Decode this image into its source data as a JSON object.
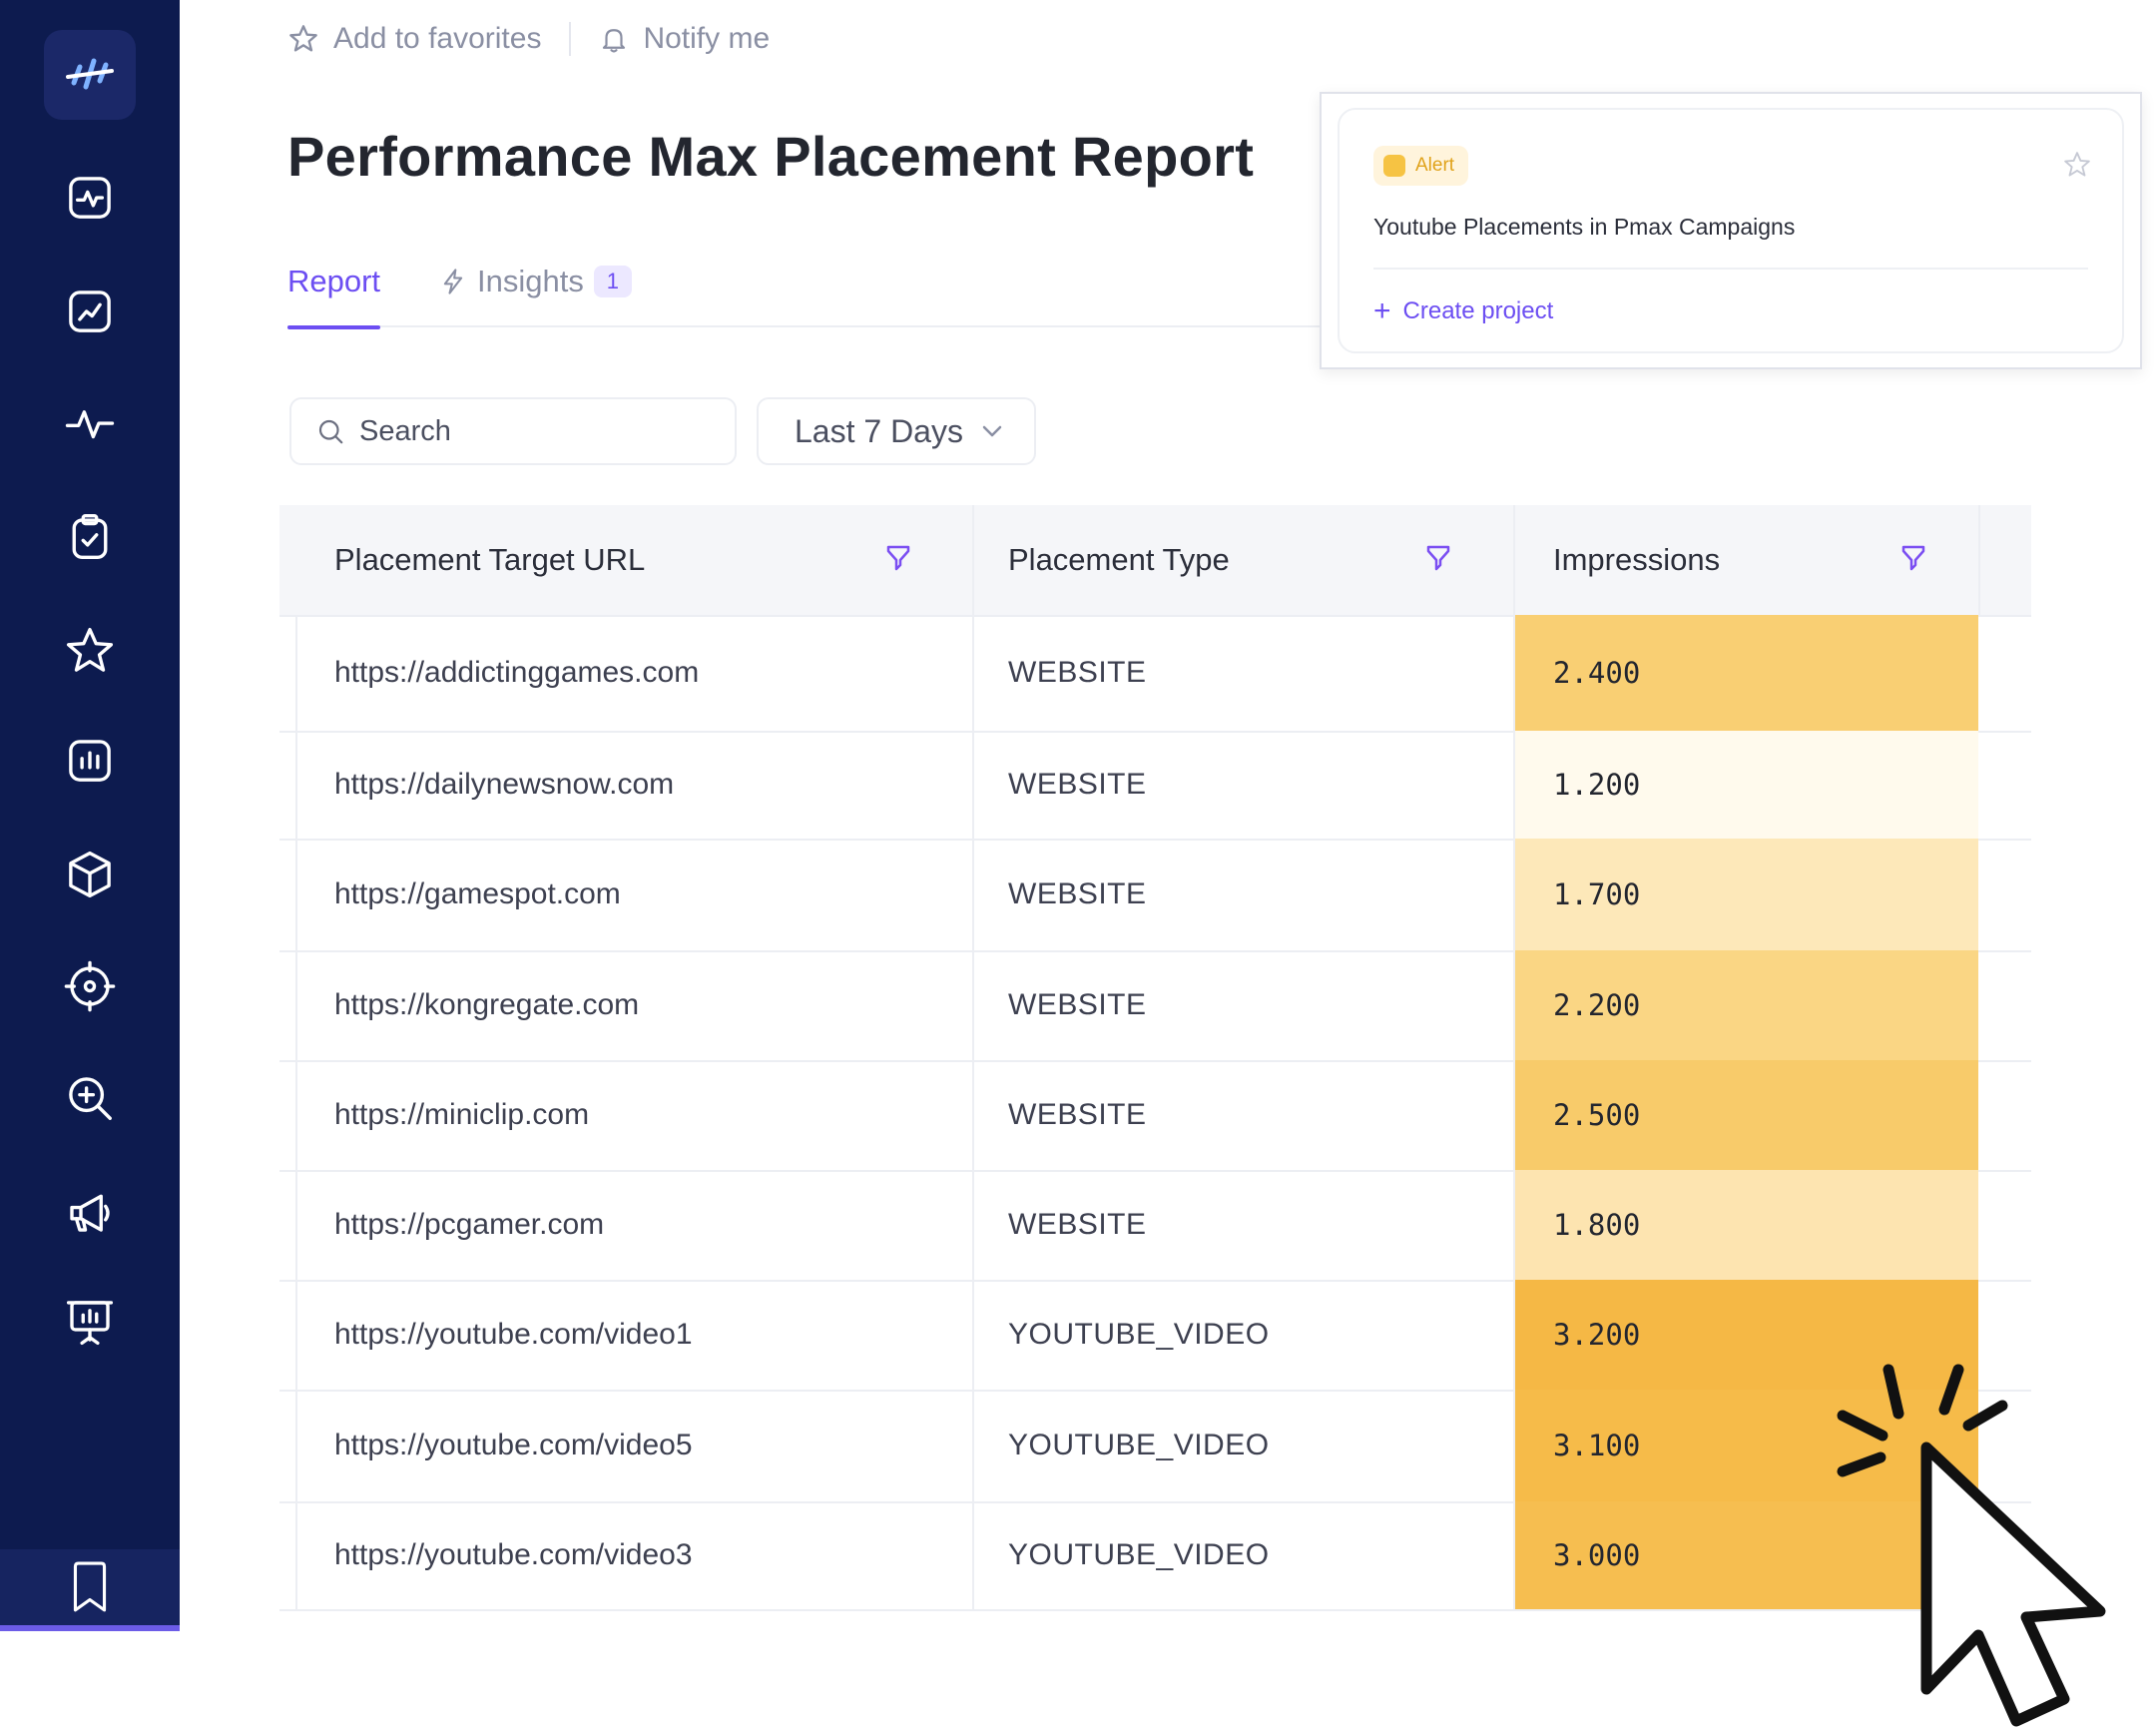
{
  "topbar": {
    "favorites_label": "Add to favorites",
    "notify_label": "Notify me"
  },
  "page": {
    "title": "Performance Max Placement Report"
  },
  "tabs": [
    {
      "label": "Report",
      "active": true
    },
    {
      "label": "Insights",
      "count": "1",
      "active": false
    }
  ],
  "filters": {
    "search_placeholder": "Search",
    "date_range": "Last 7 Days"
  },
  "table": {
    "columns": [
      "Placement Target URL",
      "Placement Type",
      "Impressions"
    ],
    "rows": [
      {
        "url": "https://addictinggames.com",
        "type": "WEBSITE",
        "impressions": "2.400",
        "heat": "#f9cf73"
      },
      {
        "url": "https://dailynewsnow.com",
        "type": "WEBSITE",
        "impressions": "1.200",
        "heat": "#fffaed"
      },
      {
        "url": "https://gamespot.com",
        "type": "WEBSITE",
        "impressions": "1.700",
        "heat": "#fde8b9"
      },
      {
        "url": "https://kongregate.com",
        "type": "WEBSITE",
        "impressions": "2.200",
        "heat": "#fad684"
      },
      {
        "url": "https://miniclip.com",
        "type": "WEBSITE",
        "impressions": "2.500",
        "heat": "#f8cb6a"
      },
      {
        "url": "https://pcgamer.com",
        "type": "WEBSITE",
        "impressions": "1.800",
        "heat": "#fde4b0"
      },
      {
        "url": "https://youtube.com/video1",
        "type": "YOUTUBE_VIDEO",
        "impressions": "3.200",
        "heat": "#f5b845"
      },
      {
        "url": "https://youtube.com/video5",
        "type": "YOUTUBE_VIDEO",
        "impressions": "3.100",
        "heat": "#f6bb49"
      },
      {
        "url": "https://youtube.com/video3",
        "type": "YOUTUBE_VIDEO",
        "impressions": "3.000",
        "heat": "#f6be50"
      }
    ]
  },
  "alert": {
    "badge": "Alert",
    "title": "Youtube Placements in Pmax Campaigns",
    "action": "Create project"
  },
  "colors": {
    "sidebar": "#0d1b4f",
    "accent": "#6c4ef2",
    "alert": "#f6c343"
  },
  "icons": [
    "logo-icon",
    "monitor-icon",
    "trend-chart-icon",
    "pulse-icon",
    "clipboard-check-icon",
    "star-icon",
    "bar-chart-icon",
    "cube-icon",
    "target-icon",
    "zoom-in-icon",
    "megaphone-icon",
    "presentation-icon",
    "bookmark-icon"
  ]
}
